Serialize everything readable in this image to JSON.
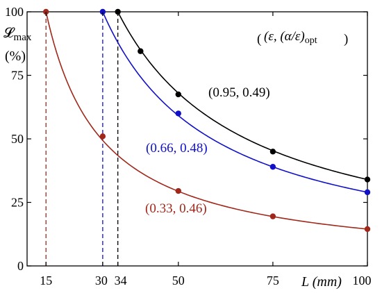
{
  "chart_data": {
    "type": "line",
    "y_label_main": "𝓛",
    "y_label_sub": "max",
    "y_unit": "(%)",
    "x_label": "L (mm)",
    "legend_text": "(ε, (α/ε)",
    "legend_sub": "opt",
    "x_ticks": [
      15,
      30,
      34,
      50,
      75,
      100
    ],
    "y_ticks": [
      0,
      25,
      50,
      75,
      100
    ],
    "xlim": [
      10,
      100
    ],
    "ylim": [
      0,
      100
    ],
    "grid": false,
    "series": [
      {
        "name": "(0.95, 0.49)",
        "color": "#000000",
        "threshold_x": 34,
        "points": [
          [
            34,
            100
          ],
          [
            40,
            84.5
          ],
          [
            50,
            67.5
          ],
          [
            75,
            45
          ],
          [
            100,
            34
          ]
        ]
      },
      {
        "name": "(0.66, 0.48)",
        "color": "#1010c8",
        "threshold_x": 30,
        "points": [
          [
            30,
            100
          ],
          [
            50,
            60
          ],
          [
            75,
            39
          ],
          [
            100,
            29
          ]
        ]
      },
      {
        "name": "(0.33, 0.46)",
        "color": "#a0281a",
        "threshold_x": 15,
        "points": [
          [
            15,
            100
          ],
          [
            30,
            51
          ],
          [
            50,
            29.5
          ],
          [
            75,
            19.5
          ],
          [
            100,
            14.5
          ]
        ]
      }
    ]
  }
}
